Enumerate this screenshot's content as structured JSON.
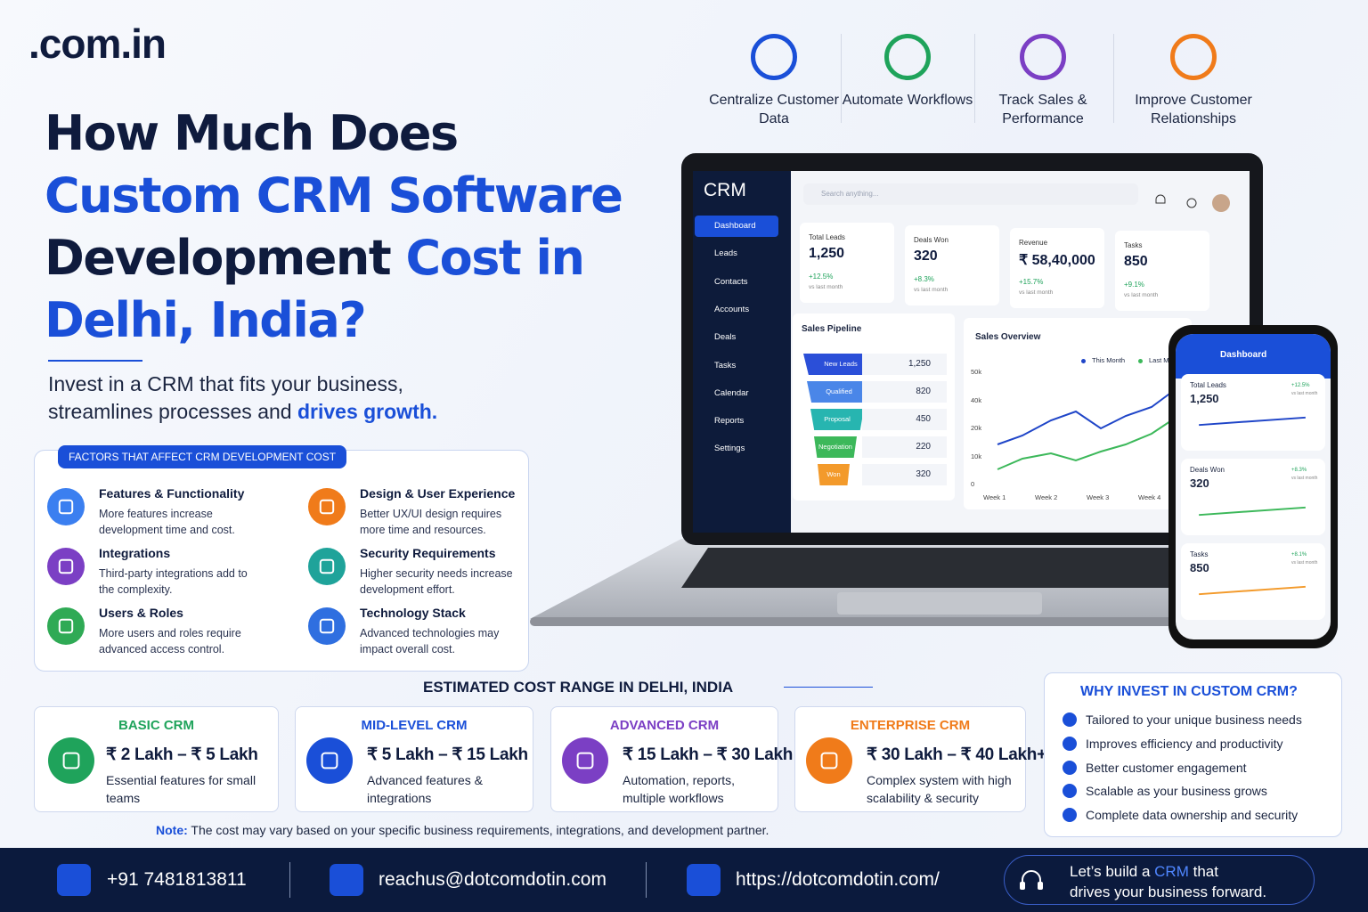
{
  "logo": ".com.in",
  "features": [
    {
      "text": "Centralize Customer Data",
      "color": "#1a4fd8"
    },
    {
      "text": "Automate Workflows",
      "color": "#1fa35b"
    },
    {
      "text": "Track Sales & Performance",
      "color": "#7b3fc4"
    },
    {
      "text": "Improve Customer Relationships",
      "color": "#f07b1a"
    }
  ],
  "headline": {
    "line1": "How Much Does",
    "line2": "Custom CRM Software",
    "line3a": "Development",
    "line3b": "Cost in",
    "line4": "Delhi, India?"
  },
  "subtitle": {
    "text": "Invest in a CRM that fits your business, streamlines processes and",
    "highlight": "drives growth."
  },
  "factors": {
    "title": "FACTORS THAT AFFECT CRM DEVELOPMENT COST",
    "items": [
      {
        "title": "Features & Functionality",
        "text": "More features increase development time and cost.",
        "color": "#3b7ff0"
      },
      {
        "title": "Design & User Experience",
        "text": "Better UX/UI design requires more time and resources.",
        "color": "#f07b1a"
      },
      {
        "title": "Integrations",
        "text": "Third-party integrations add to the complexity.",
        "color": "#7b3fc4"
      },
      {
        "title": "Security Requirements",
        "text": "Higher security needs increase development effort.",
        "color": "#1fa39a"
      },
      {
        "title": "Users & Roles",
        "text": "More users and roles require advanced access control.",
        "color": "#2faa55"
      },
      {
        "title": "Technology Stack",
        "text": "Advanced technologies may impact overall cost.",
        "color": "#2f6fe0"
      }
    ]
  },
  "dashboard": {
    "brand": "CRM",
    "search": "Search anything...",
    "menu": [
      "Dashboard",
      "Leads",
      "Contacts",
      "Accounts",
      "Deals",
      "Tasks",
      "Calendar",
      "Reports",
      "Settings"
    ],
    "stats": [
      {
        "label": "Total Leads",
        "value": "1,250",
        "change": "+12.5%",
        "note": "vs last month"
      },
      {
        "label": "Deals Won",
        "value": "320",
        "change": "+8.3%",
        "note": "vs last month"
      },
      {
        "label": "Revenue",
        "value": "₹ 58,40,000",
        "change": "+15.7%",
        "note": "vs last month"
      },
      {
        "label": "Tasks",
        "value": "850",
        "change": "+9.1%",
        "note": "vs last month"
      }
    ],
    "pipeline": {
      "title": "Sales Pipeline",
      "stages": [
        {
          "name": "New Leads",
          "value": "1,250",
          "color": "#2b4fd8"
        },
        {
          "name": "Qualified",
          "value": "820",
          "color": "#4a86e8"
        },
        {
          "name": "Proposal",
          "value": "450",
          "color": "#27b5b0"
        },
        {
          "name": "Negotiation",
          "value": "220",
          "color": "#3cb85a"
        },
        {
          "name": "Won",
          "value": "320",
          "color": "#f39a2b"
        }
      ]
    },
    "overview": {
      "title": "Sales Overview",
      "legend": [
        {
          "name": "This Month",
          "color": "#1f45c8"
        },
        {
          "name": "Last Month",
          "color": "#3cb85a"
        }
      ],
      "yticks": [
        "50k",
        "40k",
        "20k",
        "10k",
        "0"
      ],
      "x": [
        "Week 1",
        "Week 2",
        "Week 3",
        "Week 4"
      ]
    }
  },
  "phone": {
    "title": "Dashboard",
    "change3": "+8.1%"
  },
  "cost": {
    "title": "ESTIMATED COST RANGE IN DELHI, INDIA",
    "tiers": [
      {
        "name": "BASIC CRM",
        "price": "₹ 2 Lakh – ₹ 5 Lakh",
        "text": "Essential features for small teams",
        "color": "#1fa35b"
      },
      {
        "name": "MID-LEVEL CRM",
        "price": "₹ 5 Lakh – ₹ 15 Lakh",
        "text": "Advanced features & integrations",
        "color": "#1a4fd8"
      },
      {
        "name": "ADVANCED CRM",
        "price": "₹ 15 Lakh – ₹ 30 Lakh",
        "text": "Automation, reports, multiple workflows",
        "color": "#7b3fc4"
      },
      {
        "name": "ENTERPRISE CRM",
        "price": "₹ 30 Lakh – ₹ 40 Lakh+",
        "text": "Complex system with high scalability & security",
        "color": "#f07b1a"
      }
    ],
    "note_label": "Note:",
    "note": "The cost may vary based on your specific business requirements, integrations, and development partner."
  },
  "why": {
    "title": "WHY INVEST IN CUSTOM CRM?",
    "items": [
      "Tailored to your unique business needs",
      "Improves efficiency and productivity",
      "Better customer engagement",
      "Scalable as your business grows",
      "Complete data ownership and security"
    ]
  },
  "footer": {
    "phone": "+91 7481813811",
    "email": "reachus@dotcomdotin.com",
    "url": "https://dotcomdotin.com/",
    "cta": [
      "Let’s build a",
      "CRM",
      "that",
      "drives your business forward."
    ]
  }
}
